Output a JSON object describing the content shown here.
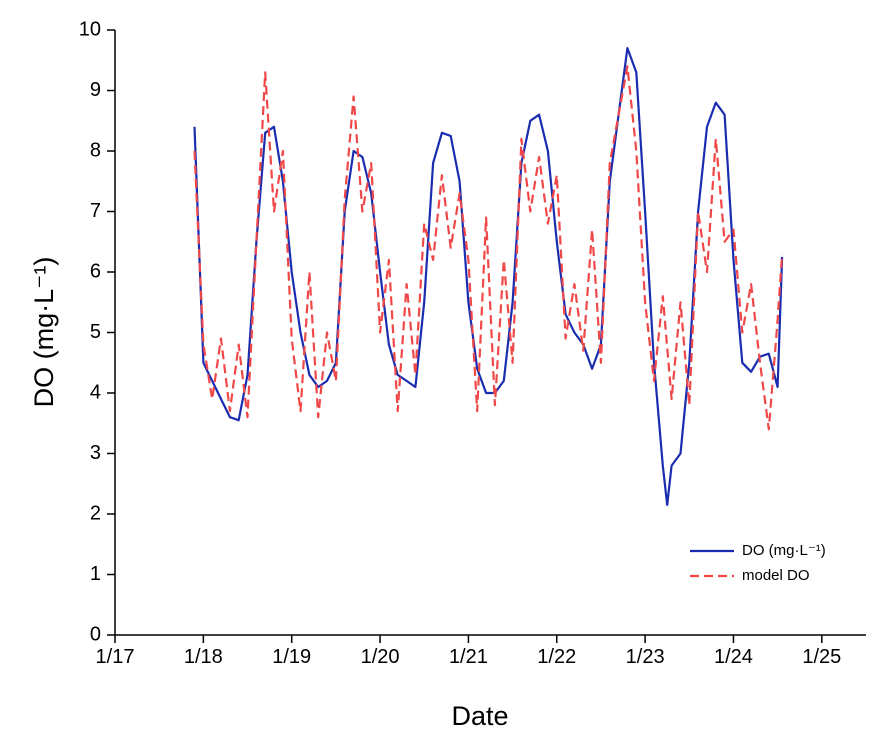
{
  "chart_data": {
    "type": "line",
    "xlabel": "Date",
    "ylabel": "DO (mg·L⁻¹)",
    "xlim": [
      17,
      25.5
    ],
    "ylim": [
      0,
      10
    ],
    "xticks": [
      {
        "value": 17,
        "label": "1/17"
      },
      {
        "value": 18,
        "label": "1/18"
      },
      {
        "value": 19,
        "label": "1/19"
      },
      {
        "value": 20,
        "label": "1/20"
      },
      {
        "value": 21,
        "label": "1/21"
      },
      {
        "value": 22,
        "label": "1/22"
      },
      {
        "value": 23,
        "label": "1/23"
      },
      {
        "value": 24,
        "label": "1/24"
      },
      {
        "value": 25,
        "label": "1/25"
      }
    ],
    "yticks": [
      0,
      1,
      2,
      3,
      4,
      5,
      6,
      7,
      8,
      9,
      10
    ],
    "legend": "lower right",
    "series": [
      {
        "name": "DO (mg·L⁻¹)",
        "color": "#1a2db0",
        "dash": false,
        "x": [
          17.9,
          18.0,
          18.1,
          18.2,
          18.3,
          18.4,
          18.5,
          18.6,
          18.7,
          18.8,
          18.9,
          19.0,
          19.1,
          19.2,
          19.3,
          19.4,
          19.5,
          19.6,
          19.7,
          19.8,
          19.9,
          20.0,
          20.1,
          20.2,
          20.3,
          20.4,
          20.5,
          20.6,
          20.7,
          20.8,
          20.9,
          21.0,
          21.1,
          21.2,
          21.3,
          21.4,
          21.5,
          21.6,
          21.7,
          21.8,
          21.9,
          22.0,
          22.1,
          22.2,
          22.3,
          22.4,
          22.5,
          22.6,
          22.7,
          22.8,
          22.9,
          23.0,
          23.1,
          23.2,
          23.25,
          23.3,
          23.4,
          23.5,
          23.6,
          23.7,
          23.8,
          23.9,
          24.0,
          24.1,
          24.2,
          24.3,
          24.4,
          24.5,
          24.55
        ],
        "values": [
          8.4,
          4.5,
          4.2,
          3.9,
          3.6,
          3.55,
          4.3,
          6.5,
          8.3,
          8.4,
          7.5,
          6.0,
          5.0,
          4.3,
          4.1,
          4.2,
          4.5,
          7.0,
          8.0,
          7.9,
          7.3,
          6.0,
          4.8,
          4.3,
          4.2,
          4.1,
          5.5,
          7.8,
          8.3,
          8.25,
          7.5,
          5.5,
          4.4,
          4.0,
          4.0,
          4.2,
          5.5,
          7.8,
          8.5,
          8.6,
          8.0,
          6.5,
          5.3,
          5.0,
          4.8,
          4.4,
          4.8,
          7.5,
          8.6,
          9.7,
          9.3,
          7.0,
          4.5,
          2.8,
          2.15,
          2.8,
          3.0,
          4.5,
          7.0,
          8.4,
          8.8,
          8.6,
          6.2,
          4.5,
          4.35,
          4.6,
          4.65,
          4.1,
          6.25
        ]
      },
      {
        "name": "model DO",
        "color": "#f04848",
        "dash": true,
        "x": [
          17.9,
          18.0,
          18.1,
          18.2,
          18.3,
          18.4,
          18.5,
          18.6,
          18.7,
          18.8,
          18.9,
          19.0,
          19.1,
          19.2,
          19.3,
          19.4,
          19.5,
          19.6,
          19.7,
          19.8,
          19.9,
          20.0,
          20.1,
          20.2,
          20.3,
          20.4,
          20.5,
          20.6,
          20.7,
          20.8,
          20.9,
          21.0,
          21.1,
          21.2,
          21.3,
          21.4,
          21.5,
          21.6,
          21.7,
          21.8,
          21.9,
          22.0,
          22.1,
          22.2,
          22.3,
          22.4,
          22.5,
          22.6,
          22.7,
          22.8,
          22.9,
          23.0,
          23.1,
          23.2,
          23.3,
          23.4,
          23.5,
          23.6,
          23.7,
          23.8,
          23.9,
          24.0,
          24.1,
          24.2,
          24.3,
          24.4,
          24.5,
          24.55
        ],
        "values": [
          8.0,
          4.8,
          3.9,
          4.9,
          3.7,
          4.8,
          3.6,
          6.5,
          9.3,
          7.0,
          8.0,
          4.9,
          3.7,
          6.0,
          3.6,
          5.0,
          4.2,
          7.2,
          8.9,
          7.0,
          7.8,
          5.0,
          6.2,
          3.7,
          5.8,
          4.3,
          6.8,
          6.2,
          7.6,
          6.4,
          7.3,
          6.2,
          3.7,
          6.9,
          3.8,
          6.2,
          4.5,
          8.2,
          7.0,
          7.9,
          6.8,
          7.6,
          4.9,
          5.8,
          4.7,
          6.7,
          4.5,
          7.8,
          8.6,
          9.4,
          8.0,
          5.5,
          4.2,
          5.6,
          3.9,
          5.5,
          3.8,
          7.0,
          6.0,
          8.2,
          6.5,
          6.7,
          5.0,
          5.8,
          4.5,
          3.4,
          5.2,
          6.3
        ]
      }
    ]
  }
}
